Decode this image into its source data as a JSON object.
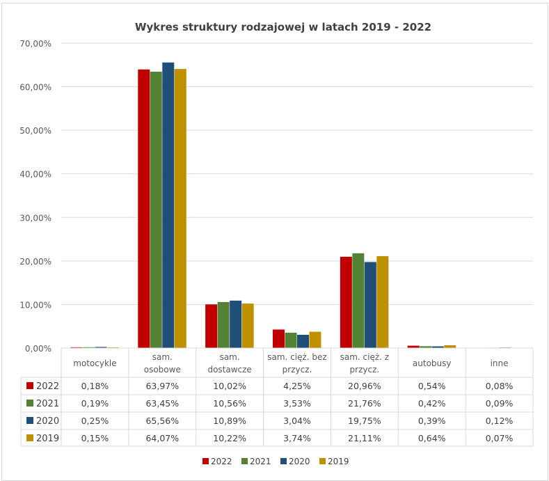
{
  "chart_data": {
    "type": "bar",
    "title": "Wykres struktury rodzajowej w latach 2019 - 2022",
    "categories": [
      "motocykle",
      "sam. osobowe",
      "sam. dostawcze",
      "sam. cięż. bez przycz.",
      "sam. cięż. z przycz.",
      "autobusy",
      "inne"
    ],
    "category_lines": [
      [
        "motocykle"
      ],
      [
        "sam.",
        "osobowe"
      ],
      [
        "sam.",
        "dostawcze"
      ],
      [
        "sam. cięż. bez",
        "przycz."
      ],
      [
        "sam. cięż. z",
        "przycz."
      ],
      [
        "autobusy"
      ],
      [
        "inne"
      ]
    ],
    "series": [
      {
        "name": "2022",
        "color": "#C00000",
        "values": [
          0.18,
          63.97,
          10.02,
          4.25,
          20.96,
          0.54,
          0.08
        ],
        "labels": [
          "0,18%",
          "63,97%",
          "10,02%",
          "4,25%",
          "20,96%",
          "0,54%",
          "0,08%"
        ]
      },
      {
        "name": "2021",
        "color": "#548235",
        "values": [
          0.19,
          63.45,
          10.56,
          3.53,
          21.76,
          0.42,
          0.09
        ],
        "labels": [
          "0,19%",
          "63,45%",
          "10,56%",
          "3,53%",
          "21,76%",
          "0,42%",
          "0,09%"
        ]
      },
      {
        "name": "2020",
        "color": "#1F4E79",
        "values": [
          0.25,
          65.56,
          10.89,
          3.04,
          19.75,
          0.39,
          0.12
        ],
        "labels": [
          "0,25%",
          "65,56%",
          "10,89%",
          "3,04%",
          "19,75%",
          "0,39%",
          "0,12%"
        ]
      },
      {
        "name": "2019",
        "color": "#BF9000",
        "values": [
          0.15,
          64.07,
          10.22,
          3.74,
          21.11,
          0.64,
          0.07
        ],
        "labels": [
          "0,15%",
          "64,07%",
          "10,22%",
          "3,74%",
          "21,11%",
          "0,64%",
          "0,07%"
        ]
      }
    ],
    "yticks": [
      "0,00%",
      "10,00%",
      "20,00%",
      "30,00%",
      "40,00%",
      "50,00%",
      "60,00%",
      "70,00%"
    ],
    "ylim": [
      0,
      70
    ],
    "grid": true,
    "data_table": true,
    "legend_position": "bottom"
  }
}
